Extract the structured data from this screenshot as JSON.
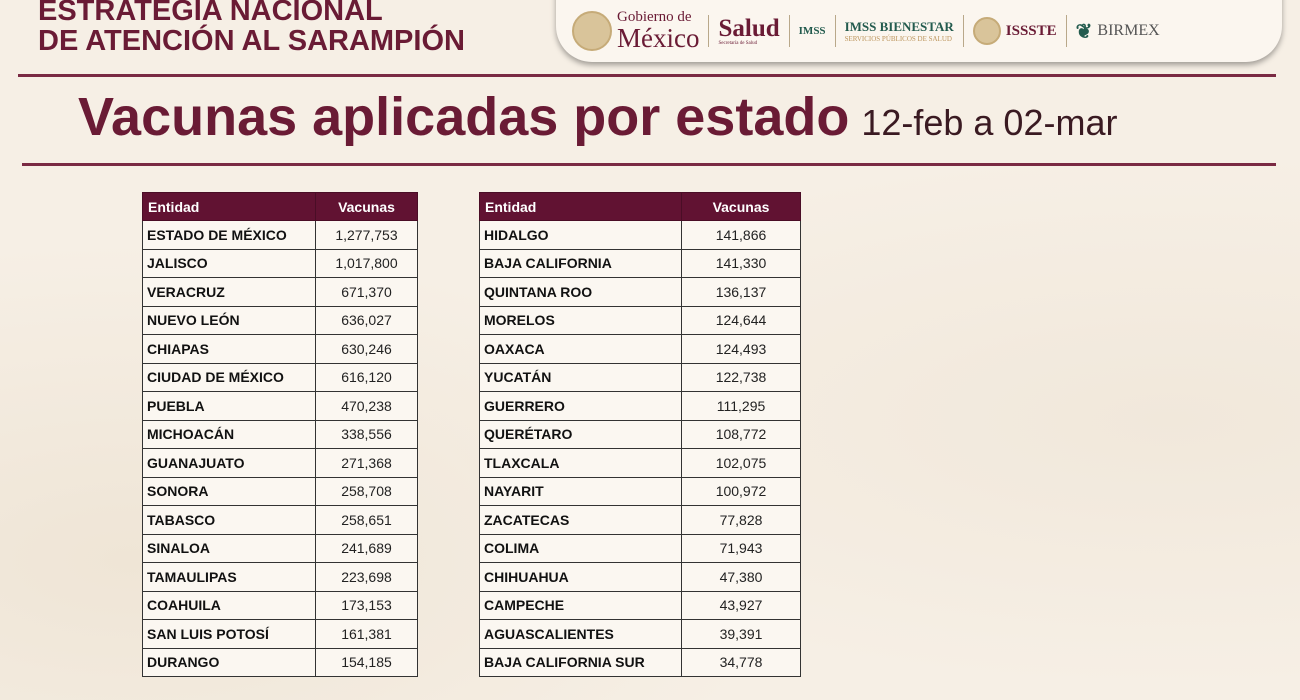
{
  "header": {
    "strategy_line1": "ESTRATEGIA NACIONAL",
    "strategy_line2": "DE ATENCIÓN AL SARAMPIÓN",
    "logos": {
      "gob_a": "Gobierno de",
      "gob_b": "México",
      "salud": "Salud",
      "salud_sub": "Secretaría de Salud",
      "imss": "IMSS",
      "bienestar": "IMSS BIENESTAR",
      "bienestar_sub": "SERVICIOS PÚBLICOS DE SALUD",
      "issste": "ISSSTE",
      "birmex": "BIRMEX"
    }
  },
  "title": {
    "main": "Vacunas aplicadas por estado",
    "range": "12-feb a 02-mar"
  },
  "colors": {
    "maroon": "#611232",
    "background": "#f6efe5"
  },
  "tables": [
    {
      "headers": [
        "Entidad",
        "Vacunas"
      ],
      "rows": [
        [
          "ESTADO DE MÉXICO",
          "1,277,753"
        ],
        [
          "JALISCO",
          "1,017,800"
        ],
        [
          "VERACRUZ",
          "671,370"
        ],
        [
          "NUEVO LEÓN",
          "636,027"
        ],
        [
          "CHIAPAS",
          "630,246"
        ],
        [
          "CIUDAD DE MÉXICO",
          "616,120"
        ],
        [
          "PUEBLA",
          "470,238"
        ],
        [
          "MICHOACÁN",
          "338,556"
        ],
        [
          "GUANAJUATO",
          "271,368"
        ],
        [
          "SONORA",
          "258,708"
        ],
        [
          "TABASCO",
          "258,651"
        ],
        [
          "SINALOA",
          "241,689"
        ],
        [
          "TAMAULIPAS",
          "223,698"
        ],
        [
          "COAHUILA",
          "173,153"
        ],
        [
          "SAN LUIS POTOSÍ",
          "161,381"
        ],
        [
          "DURANGO",
          "154,185"
        ]
      ]
    },
    {
      "headers": [
        "Entidad",
        "Vacunas"
      ],
      "rows": [
        [
          "HIDALGO",
          "141,866"
        ],
        [
          "BAJA CALIFORNIA",
          "141,330"
        ],
        [
          "QUINTANA ROO",
          "136,137"
        ],
        [
          "MORELOS",
          "124,644"
        ],
        [
          "OAXACA",
          "124,493"
        ],
        [
          "YUCATÁN",
          "122,738"
        ],
        [
          "GUERRERO",
          "111,295"
        ],
        [
          "QUERÉTARO",
          "108,772"
        ],
        [
          "TLAXCALA",
          "102,075"
        ],
        [
          "NAYARIT",
          "100,972"
        ],
        [
          "ZACATECAS",
          "77,828"
        ],
        [
          "COLIMA",
          "71,943"
        ],
        [
          "CHIHUAHUA",
          "47,380"
        ],
        [
          "CAMPECHE",
          "43,927"
        ],
        [
          "AGUASCALIENTES",
          "39,391"
        ],
        [
          "BAJA CALIFORNIA SUR",
          "34,778"
        ]
      ]
    }
  ]
}
